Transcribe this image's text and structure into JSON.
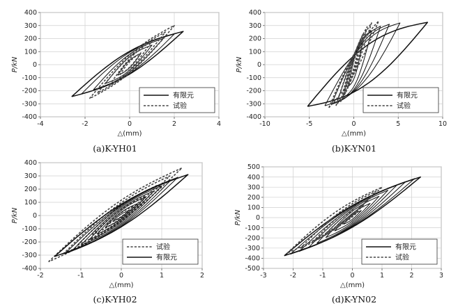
{
  "chart_data": [
    {
      "type": "line",
      "caption": "(a)K-YH01",
      "xlabel": "△(mm)",
      "ylabel": "P/kN",
      "xlim": [
        -4,
        4
      ],
      "ylim": [
        -400,
        400
      ],
      "xticks": [
        "-4",
        "-2",
        "0",
        "2",
        "4"
      ],
      "yticks": [
        "-400",
        "-300",
        "-200",
        "-100",
        "0",
        "100",
        "200",
        "300",
        "400"
      ],
      "legend_position": "bottom-right",
      "legend_order": [
        "有限元",
        "试验"
      ],
      "series": [
        {
          "name": "有限元",
          "style": "solid",
          "amps": [
            0.5,
            1.0,
            1.5,
            2.0,
            2.4
          ],
          "peak_loads": [
            85,
            150,
            200,
            235,
            255
          ],
          "neg_peak_dx": -2.6,
          "neg_peak_load": -245,
          "pinch": 0.7
        },
        {
          "name": "试验",
          "style": "dashed",
          "amps": [
            0.5,
            1.0,
            1.6,
            2.0
          ],
          "peak_loads": [
            90,
            180,
            250,
            300
          ],
          "neg_peak_dx": -1.8,
          "neg_peak_load": -260,
          "pinch": 0.5
        }
      ]
    },
    {
      "type": "line",
      "caption": "(b)K-YN01",
      "xlabel": "△(mm)",
      "ylabel": "P/kN",
      "xlim": [
        -10,
        10
      ],
      "ylim": [
        -400,
        400
      ],
      "xticks": [
        "-10",
        "-5",
        "0",
        "5",
        "10"
      ],
      "yticks": [
        "-400",
        "-300",
        "-200",
        "-100",
        "0",
        "100",
        "200",
        "300",
        "400"
      ],
      "legend_position": "bottom-right",
      "legend_order": [
        "有限元",
        "试验"
      ],
      "series": [
        {
          "name": "有限元",
          "style": "solid",
          "amps": [
            1,
            2,
            3,
            4,
            5.2,
            8.3
          ],
          "peak_loads": [
            170,
            260,
            295,
            310,
            320,
            325
          ],
          "neg_peak_dx": -5.2,
          "neg_peak_load": -320,
          "pinch": 0.92
        },
        {
          "name": "试验",
          "style": "dashed",
          "amps": [
            0.5,
            1.0,
            1.5,
            2.0,
            2.8
          ],
          "peak_loads": [
            120,
            230,
            290,
            320,
            335
          ],
          "neg_peak_dx": -2.8,
          "neg_peak_load": -330,
          "pinch": 0.45
        }
      ]
    },
    {
      "type": "line",
      "caption": "(c)K-YH02",
      "xlabel": "△(mm)",
      "ylabel": "P/kN",
      "xlim": [
        -2,
        2
      ],
      "ylim": [
        -400,
        400
      ],
      "xticks": [
        "-2",
        "-1",
        "0",
        "1",
        "2"
      ],
      "yticks": [
        "-400",
        "-300",
        "-200",
        "-100",
        "0",
        "100",
        "200",
        "300",
        "400"
      ],
      "legend_position": "bottom-right",
      "legend_order": [
        "试验",
        "有限元"
      ],
      "series": [
        {
          "name": "试验",
          "style": "dashed",
          "amps": [
            0.3,
            0.6,
            0.9,
            1.2,
            1.5
          ],
          "peak_loads": [
            70,
            150,
            230,
            300,
            360
          ],
          "neg_peak_dx": -1.8,
          "neg_peak_load": -350,
          "pinch": 0.45
        },
        {
          "name": "有限元",
          "style": "solid",
          "amps": [
            0.2,
            0.4,
            0.6,
            0.8,
            1.0,
            1.2,
            1.4,
            1.65
          ],
          "peak_loads": [
            40,
            90,
            140,
            185,
            225,
            260,
            290,
            310
          ],
          "neg_peak_dx": -1.65,
          "neg_peak_load": -310,
          "pinch": 0.55
        }
      ]
    },
    {
      "type": "line",
      "caption": "(d)K-YN02",
      "xlabel": "△(mm)",
      "ylabel": "P/kN",
      "xlim": [
        -3,
        3
      ],
      "ylim": [
        -500,
        500
      ],
      "xticks": [
        "-3",
        "-2",
        "-1",
        "0",
        "1",
        "2",
        "3"
      ],
      "yticks": [
        "-500",
        "-400",
        "-300",
        "-200",
        "-100",
        "0",
        "100",
        "200",
        "300",
        "400",
        "500"
      ],
      "legend_position": "bottom-right",
      "legend_order": [
        "有限元",
        "试验"
      ],
      "series": [
        {
          "name": "有限元",
          "style": "solid",
          "amps": [
            0.3,
            0.6,
            0.9,
            1.2,
            1.5,
            1.8,
            2.1,
            2.3
          ],
          "peak_loads": [
            70,
            140,
            210,
            270,
            320,
            355,
            385,
            400
          ],
          "neg_peak_dx": -2.3,
          "neg_peak_load": -375,
          "pinch": 0.55
        },
        {
          "name": "试验",
          "style": "dashed",
          "amps": [
            0.2,
            0.4,
            0.6,
            0.8,
            1.0
          ],
          "peak_loads": [
            60,
            130,
            200,
            260,
            300
          ],
          "neg_peak_dx": -2.2,
          "neg_peak_load": -350,
          "pinch": 0.45
        }
      ]
    }
  ]
}
